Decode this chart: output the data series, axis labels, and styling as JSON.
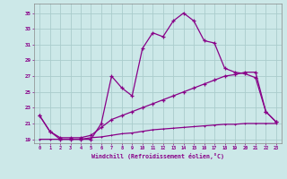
{
  "xlabel": "Windchill (Refroidissement éolien,°C)",
  "background_color": "#cce8e8",
  "grid_color": "#aacccc",
  "line_color": "#880088",
  "x_values": [
    0,
    1,
    2,
    3,
    4,
    5,
    6,
    7,
    8,
    9,
    10,
    11,
    12,
    13,
    14,
    15,
    16,
    17,
    18,
    19,
    20,
    21,
    22,
    23
  ],
  "series1": [
    22.0,
    20.0,
    19.0,
    19.0,
    19.0,
    19.0,
    21.0,
    27.0,
    25.5,
    24.5,
    30.5,
    32.5,
    32.0,
    34.0,
    35.0,
    34.0,
    31.5,
    31.2,
    28.0,
    27.5,
    27.3,
    26.8,
    22.5,
    21.2
  ],
  "series2": [
    22.0,
    20.0,
    19.2,
    19.2,
    19.2,
    19.5,
    20.5,
    21.5,
    22.0,
    22.5,
    23.0,
    23.5,
    24.0,
    24.5,
    25.0,
    25.5,
    26.0,
    26.5,
    27.0,
    27.2,
    27.5,
    27.5,
    22.5,
    21.2
  ],
  "series3": [
    19.0,
    19.0,
    19.0,
    19.0,
    19.0,
    19.2,
    19.3,
    19.5,
    19.7,
    19.8,
    20.0,
    20.2,
    20.3,
    20.4,
    20.5,
    20.6,
    20.7,
    20.8,
    20.9,
    20.9,
    21.0,
    21.0,
    21.0,
    21.0
  ],
  "ylim": [
    18.5,
    36.2
  ],
  "yticks": [
    19,
    21,
    23,
    25,
    27,
    29,
    31,
    33,
    35
  ],
  "xlim": [
    -0.5,
    23.5
  ]
}
